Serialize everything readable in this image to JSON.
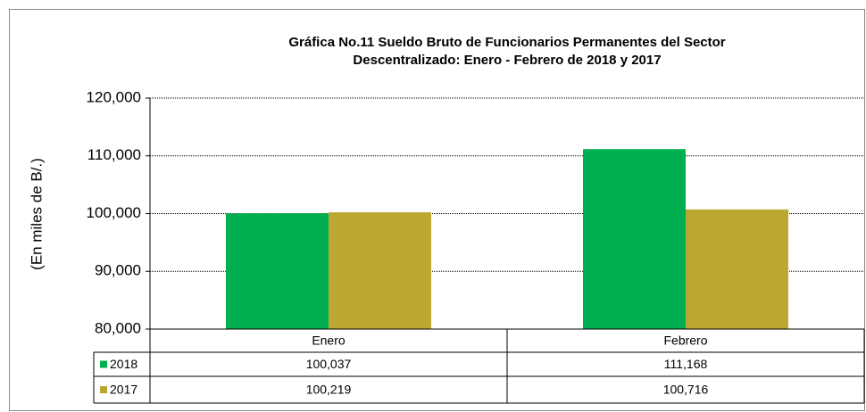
{
  "chart_data": {
    "type": "bar",
    "title": [
      "Gráfica No.11 Sueldo Bruto de Funcionarios Permanentes del Sector",
      "Descentralizado: Enero - Febrero de 2018 y 2017"
    ],
    "y_label": "(En miles de B/.)",
    "categories": [
      "Enero",
      "Febrero"
    ],
    "series": [
      {
        "name": "2018",
        "color": "#00b050",
        "values": [
          100037,
          111168
        ],
        "value_labels": [
          "100,037",
          "111,168"
        ]
      },
      {
        "name": "2017",
        "color": "#bba731",
        "values": [
          100219,
          100716
        ],
        "value_labels": [
          "100,219",
          "100,716"
        ]
      }
    ],
    "ylim": [
      80000,
      120000
    ],
    "yticks": [
      {
        "value": 80000,
        "label": "80,000"
      },
      {
        "value": 90000,
        "label": "90,000"
      },
      {
        "value": 100000,
        "label": "100,000"
      },
      {
        "value": 110000,
        "label": "110,000"
      },
      {
        "value": 120000,
        "label": "120,000"
      }
    ],
    "grid": true
  }
}
